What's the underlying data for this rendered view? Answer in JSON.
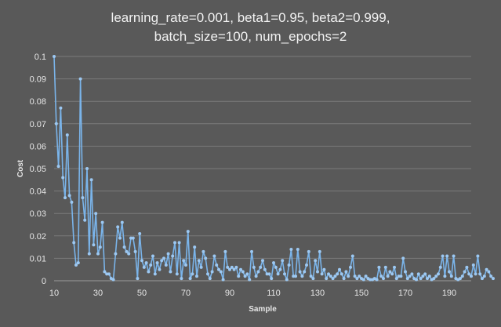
{
  "chart_data": {
    "type": "line",
    "title_lines": [
      "learning_rate=0.001, beta1=0.95, beta2=0.999,",
      "batch_size=100, num_epochs=2"
    ],
    "xlabel": "Sample",
    "ylabel": "Cost",
    "xlim": [
      10,
      200
    ],
    "ylim": [
      0,
      0.1
    ],
    "x_ticks": [
      10,
      30,
      50,
      70,
      90,
      110,
      130,
      150,
      170,
      190
    ],
    "y_ticks": [
      "0",
      "0.01",
      "0.02",
      "0.03",
      "0.04",
      "0.05",
      "0.06",
      "0.07",
      "0.08",
      "0.09",
      "0.1"
    ],
    "grid": "horizontal",
    "legend": "none",
    "colors": {
      "background": "#595959",
      "line": "#7ab4ea",
      "marker": "#9cc8f2",
      "gridline": "#7a7a7a"
    },
    "x_start": 10,
    "series": [
      {
        "values": [
          0.1,
          0.07,
          0.051,
          0.077,
          0.046,
          0.037,
          0.065,
          0.038,
          0.035,
          0.017,
          0.007,
          0.008,
          0.09,
          0.037,
          0.027,
          0.05,
          0.012,
          0.045,
          0.016,
          0.03,
          0.012,
          0.015,
          0.026,
          0.004,
          0.003,
          0.003,
          0.001,
          0.0005,
          0.012,
          0.024,
          0.019,
          0.026,
          0.015,
          0.013,
          0.012,
          0.019,
          0.019,
          0.013,
          0.001,
          0.021,
          0.009,
          0.006,
          0.008,
          0.004,
          0.007,
          0.011,
          0.003,
          0.008,
          0.005,
          0.009,
          0.01,
          0.007,
          0.012,
          0.004,
          0.011,
          0.017,
          0.003,
          0.017,
          0.001,
          0.009,
          0.007,
          0.022,
          0.001,
          0.003,
          0.015,
          0.002,
          0.009,
          0.006,
          0.013,
          0.01,
          0.003,
          0.001,
          0.004,
          0.011,
          0.007,
          0.005,
          0.004,
          0.0005,
          0.013,
          0.006,
          0.005,
          0.006,
          0.005,
          0.006,
          0.002,
          0.005,
          0.004,
          0.002,
          0.003,
          0.0005,
          0.013,
          0.006,
          0.002,
          0.004,
          0.006,
          0.009,
          0.005,
          0.003,
          0.003,
          0.001,
          0.008,
          0.006,
          0.003,
          0.005,
          0.009,
          0.003,
          0.0005,
          0.007,
          0.014,
          0.002,
          0.002,
          0.014,
          0.004,
          0.002,
          0.004,
          0.007,
          0.013,
          0.002,
          0.001,
          0.009,
          0.004,
          0.013,
          0.003,
          0.005,
          0.001,
          0.003,
          0.002,
          0.001,
          0.002,
          0.003,
          0.005,
          0.003,
          0.001,
          0.004,
          0.002,
          0.006,
          0.011,
          0.002,
          0.001,
          0.002,
          0.001,
          0.0005,
          0.002,
          0.001,
          0.0005,
          0.0005,
          0.001,
          0.0005,
          0.006,
          0.002,
          0.001,
          0.006,
          0.002,
          0.004,
          0.003,
          0.006,
          0.001,
          0.002,
          0.002,
          0.01,
          0.004,
          0.001,
          0.002,
          0.003,
          0.001,
          0.0005,
          0.003,
          0.001,
          0.002,
          0.003,
          0.001,
          0.002,
          0.0005,
          0.001,
          0.002,
          0.003,
          0.006,
          0.011,
          0.002,
          0.011,
          0.004,
          0.002,
          0.011,
          0.001,
          0.0005,
          0.001,
          0.002,
          0.004,
          0.006,
          0.003,
          0.002,
          0.007,
          0.003,
          0.011,
          0.003,
          0.001,
          0.002,
          0.005,
          0.004,
          0.002,
          0.001
        ]
      }
    ]
  }
}
